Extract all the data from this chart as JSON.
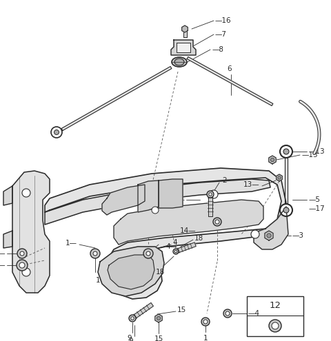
{
  "background_color": "#ffffff",
  "line_color": "#2a2a2a",
  "fig_width": 4.8,
  "fig_height": 4.95,
  "dpi": 100,
  "font_size": 7.5
}
